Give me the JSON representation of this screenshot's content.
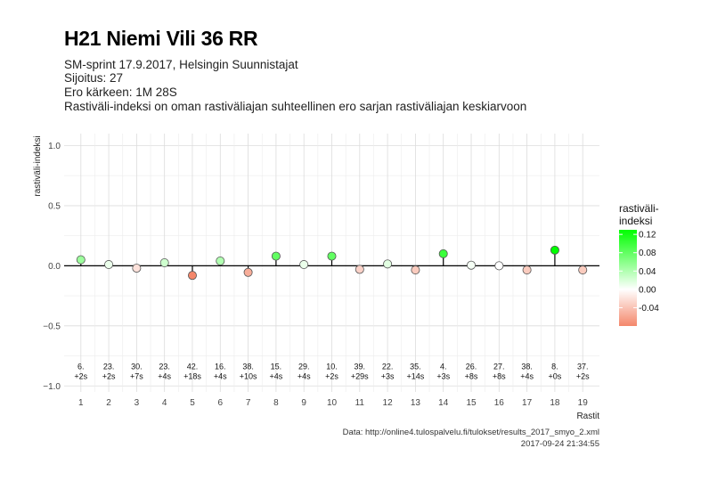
{
  "header": {
    "title": "H21 Niemi Vili 36 RR",
    "subtitle_lines": [
      "SM-sprint 17.9.2017, Helsingin Suunnistajat",
      "Sijoitus: 27",
      "Ero kärkeen: 1M 28S",
      "Rastiväli-indeksi on oman rastiväliajan suhteellinen ero sarjan rastiväliajan keskiarvoon"
    ]
  },
  "caption": {
    "source": "Data: http://online4.tulospalvelu.fi/tulokset/results_2017_smyo_2.xml",
    "timestamp": "2017-09-24 21:34:55"
  },
  "chart_data": {
    "type": "scatter",
    "xlabel": "Rastit",
    "ylabel": "rastiväli-indeksi",
    "ylim": [
      -1.05,
      1.1
    ],
    "yticks": [
      -1.0,
      -0.5,
      0.0,
      0.5,
      1.0
    ],
    "ytick_labels": [
      "−1.0",
      "−0.5",
      "0.0",
      "0.5",
      "1.0"
    ],
    "grid": true,
    "x": [
      1,
      2,
      3,
      4,
      5,
      6,
      7,
      8,
      9,
      10,
      11,
      12,
      13,
      14,
      15,
      16,
      17,
      18,
      19
    ],
    "values": [
      0.05,
      0.01,
      -0.02,
      0.025,
      -0.08,
      0.04,
      -0.055,
      0.08,
      0.01,
      0.08,
      -0.03,
      0.015,
      -0.035,
      0.1,
      0.005,
      0.0,
      -0.035,
      0.13,
      -0.035
    ],
    "point_labels": [
      [
        "6.",
        "+2s"
      ],
      [
        "23.",
        "+2s"
      ],
      [
        "30.",
        "+7s"
      ],
      [
        "23.",
        "+4s"
      ],
      [
        "42.",
        "+18s"
      ],
      [
        "16.",
        "+4s"
      ],
      [
        "38.",
        "+10s"
      ],
      [
        "15.",
        "+4s"
      ],
      [
        "29.",
        "+4s"
      ],
      [
        "10.",
        "+2s"
      ],
      [
        "39.",
        "+29s"
      ],
      [
        "22.",
        "+3s"
      ],
      [
        "35.",
        "+14s"
      ],
      [
        "4.",
        "+3s"
      ],
      [
        "26.",
        "+8s"
      ],
      [
        "27.",
        "+8s"
      ],
      [
        "38.",
        "+4s"
      ],
      [
        "8.",
        "+0s"
      ],
      [
        "37.",
        "+2s"
      ]
    ],
    "legend": {
      "title_lines": [
        "rastiväli-",
        "indeksi"
      ],
      "placement": "right",
      "ticks": [
        0.12,
        0.08,
        0.04,
        0.0,
        -0.04
      ],
      "tick_labels": [
        "0.12",
        "0.08",
        "0.04",
        "0.00",
        "-0.04"
      ],
      "range": [
        -0.08,
        0.13
      ],
      "colors": {
        "high": "#00ff00",
        "mid": "#ffffff",
        "low": "#f4876b"
      }
    }
  }
}
